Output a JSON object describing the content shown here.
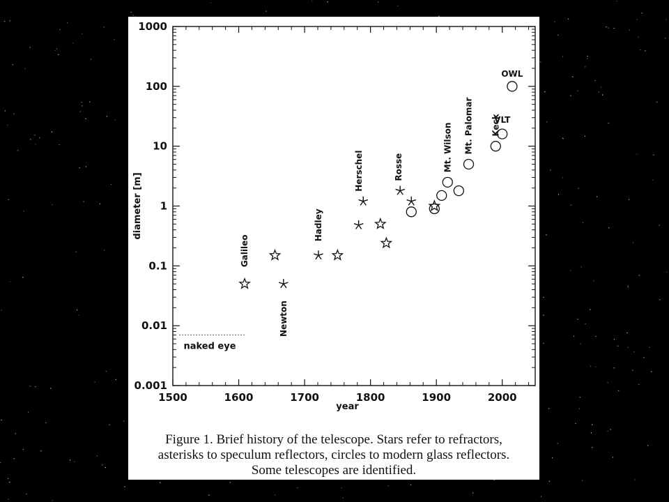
{
  "background_color": "#000000",
  "chart_data": {
    "type": "scatter",
    "title": "",
    "xlabel": "year",
    "ylabel": "diameter [m]",
    "xlim": [
      1500,
      2050
    ],
    "ylim": [
      0.001,
      1000
    ],
    "y_scale": "log",
    "x_ticks": [
      "1500",
      "1600",
      "1700",
      "1800",
      "1900",
      "2000"
    ],
    "y_ticks": [
      "0.001",
      "0.01",
      "0.1",
      "1",
      "10",
      "100",
      "1000"
    ],
    "series": [
      {
        "marker": "star",
        "points": [
          {
            "x": 1609,
            "y": 0.05
          },
          {
            "x": 1655,
            "y": 0.15
          },
          {
            "x": 1750,
            "y": 0.15
          },
          {
            "x": 1815,
            "y": 0.5
          },
          {
            "x": 1824,
            "y": 0.24
          },
          {
            "x": 1897,
            "y": 1.0
          }
        ]
      },
      {
        "marker": "asterisk",
        "points": [
          {
            "x": 1668,
            "y": 0.05
          },
          {
            "x": 1721,
            "y": 0.15
          },
          {
            "x": 1782,
            "y": 0.48
          },
          {
            "x": 1789,
            "y": 1.2
          },
          {
            "x": 1845,
            "y": 1.8
          },
          {
            "x": 1862,
            "y": 1.2
          }
        ]
      },
      {
        "marker": "circle",
        "points": [
          {
            "x": 1862,
            "y": 0.8
          },
          {
            "x": 1897,
            "y": 0.9
          },
          {
            "x": 1908,
            "y": 1.5
          },
          {
            "x": 1917,
            "y": 2.5
          },
          {
            "x": 1934,
            "y": 1.8
          },
          {
            "x": 1949,
            "y": 5.0
          },
          {
            "x": 1990,
            "y": 10.0
          },
          {
            "x": 2000,
            "y": 16.0
          },
          {
            "x": 2015,
            "y": 100.0
          }
        ]
      }
    ],
    "annotations": [
      {
        "text": "Galileo",
        "x": 1609,
        "y": 0.05,
        "rotated": true
      },
      {
        "text": "Newton",
        "x": 1668,
        "y": 0.05,
        "rotated": true
      },
      {
        "text": "Hadley",
        "x": 1721,
        "y": 0.15,
        "rotated": true
      },
      {
        "text": "Herschel",
        "x": 1789,
        "y": 1.2,
        "rotated": true
      },
      {
        "text": "Rosse",
        "x": 1845,
        "y": 1.8,
        "rotated": true
      },
      {
        "text": "Mt. Wilson",
        "x": 1917,
        "y": 2.5,
        "rotated": true
      },
      {
        "text": "Mt. Palomar",
        "x": 1949,
        "y": 5.0,
        "rotated": true
      },
      {
        "text": "Keck",
        "x": 1990,
        "y": 10.0,
        "rotated": true
      },
      {
        "text": "VLT",
        "x": 2000,
        "y": 16.0,
        "rotated": false
      },
      {
        "text": "OWL",
        "x": 2015,
        "y": 100.0,
        "rotated": false
      }
    ],
    "reference_line": {
      "label": "naked eye",
      "y": 0.007,
      "x_range": [
        1510,
        1610
      ],
      "style": "dotted"
    }
  },
  "caption": {
    "lines": [
      "Figure 1. Brief history of the telescope. Stars refer to refractors,",
      "asterisks to speculum reflectors, circles to modern glass reflectors.",
      "Some telescopes are identified."
    ]
  }
}
